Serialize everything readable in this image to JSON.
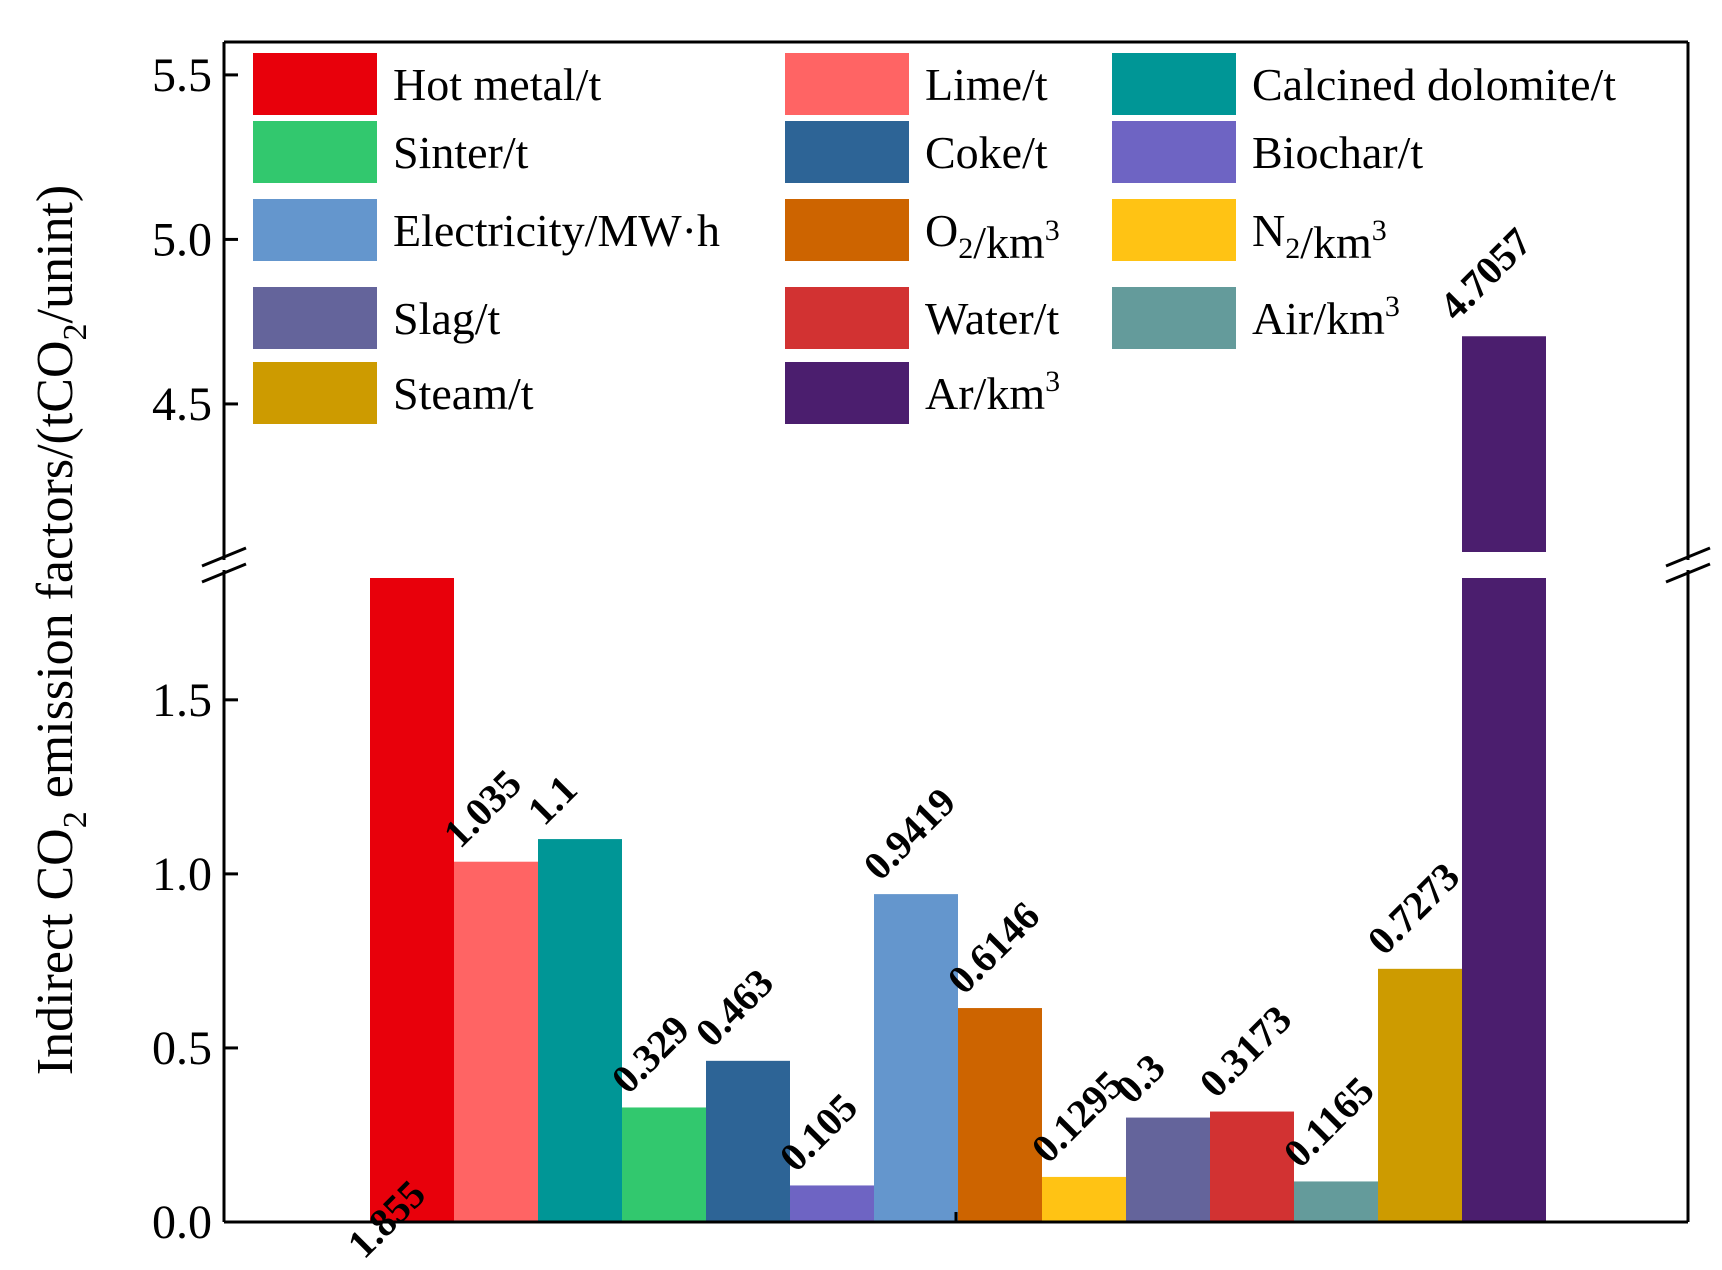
{
  "chart_data": {
    "type": "bar",
    "title": "",
    "xlabel": "",
    "ylabel": {
      "prefix": "Indirect CO",
      "sub": "2",
      "middle": " emission factors/(tCO",
      "sub2": "2",
      "suffix": "/unint)"
    },
    "axis_break": {
      "lower_range": [
        0,
        1.85
      ],
      "upper_range": [
        4.05,
        5.6
      ]
    },
    "yticks": [
      "0.0",
      "0.5",
      "1.0",
      "1.5",
      "4.5",
      "5.0",
      "5.5"
    ],
    "ytick_values": [
      0.0,
      0.5,
      1.0,
      1.5,
      4.5,
      5.0,
      5.5
    ],
    "grid": false,
    "legend_position": "top",
    "series": [
      {
        "name": "Hot metal/t",
        "value": 1.855,
        "label": "1.855",
        "color": "#e8000b"
      },
      {
        "name": "Lime/t",
        "value": 1.035,
        "label": "1.035",
        "color": "#ff6464"
      },
      {
        "name": "Calcined dolomite/t",
        "value": 1.1,
        "label": "1.1",
        "color": "#009696"
      },
      {
        "name": "Sinter/t",
        "value": 0.329,
        "label": "0.329",
        "color": "#32c86e"
      },
      {
        "name": "Coke/t",
        "value": 0.463,
        "label": "0.463",
        "color": "#2d6496"
      },
      {
        "name": "Biochar/t",
        "value": 0.105,
        "label": "0.105",
        "color": "#6e64c3"
      },
      {
        "name": "Electricity/MW·h",
        "value": 0.9419,
        "label": "0.9419",
        "color": "#6496cd"
      },
      {
        "name": "O₂/km³",
        "value": 0.6146,
        "label": "0.6146",
        "color": "#cd6400"
      },
      {
        "name": "N₂/km³",
        "value": 0.1295,
        "label": "0.1295",
        "color": "#ffc314"
      },
      {
        "name": "Slag/t",
        "value": 0.3,
        "label": "0.3",
        "color": "#64649b"
      },
      {
        "name": "Water/t",
        "value": 0.3173,
        "label": "0.3173",
        "color": "#d23232"
      },
      {
        "name": "Air/km³",
        "value": 0.1165,
        "label": "0.1165",
        "color": "#649b9b"
      },
      {
        "name": "Steam/t",
        "value": 0.7273,
        "label": "0.7273",
        "color": "#cd9b00"
      },
      {
        "name": "Ar/km³",
        "value": 4.7057,
        "label": "4.7057",
        "color": "#4b1e6e"
      }
    ],
    "legend": [
      [
        {
          "name": "Hot metal/t",
          "color": "#e8000b"
        },
        {
          "name": "Lime/t",
          "color": "#ff6464"
        },
        {
          "name": "Calcined dolomite/t",
          "color": "#009696"
        }
      ],
      [
        {
          "name": "Sinter/t",
          "color": "#32c86e"
        },
        {
          "name": "Coke/t",
          "color": "#2d6496"
        },
        {
          "name": "Biochar/t",
          "color": "#6e64c3"
        }
      ],
      [
        {
          "name": "Electricity/MW·h",
          "color": "#6496cd"
        },
        {
          "name": "O₂/km³",
          "color": "#cd6400"
        },
        {
          "name": "N₂/km³",
          "color": "#ffc314"
        }
      ],
      [
        {
          "name": "Slag/t",
          "color": "#64649b"
        },
        {
          "name": "Water/t",
          "color": "#d23232"
        },
        {
          "name": "Air/km³",
          "color": "#649b9b"
        }
      ],
      [
        {
          "name": "Steam/t",
          "color": "#cd9b00"
        },
        {
          "name": "Ar/km³",
          "color": "#4b1e6e"
        }
      ]
    ]
  }
}
